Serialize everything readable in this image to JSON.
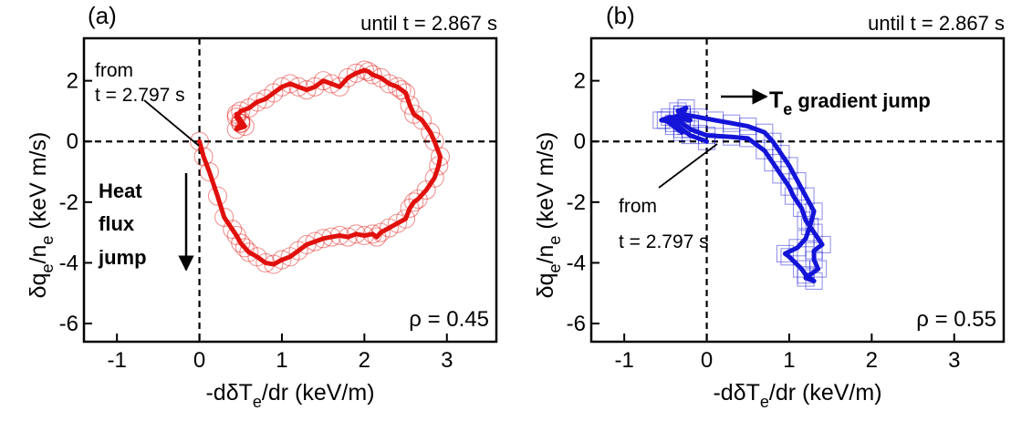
{
  "chart_data": [
    {
      "type": "line",
      "panel_label": "(a)",
      "top_right_note": "until t = 2.867 s",
      "xlabel": "-dδT",
      "xlabel_sub": "e",
      "xlabel_tail": "/dr (keV/m)",
      "ylabel_parts": [
        "δq",
        "e",
        "/n",
        "e",
        " (keV m/s)"
      ],
      "xlim": [
        -1.4,
        3.6
      ],
      "ylim": [
        -6.6,
        3.4
      ],
      "xticks": [
        "-1",
        "0",
        "1",
        "2",
        "3"
      ],
      "xtick_values": [
        -1,
        0,
        1,
        2,
        3
      ],
      "yticks": [
        "-6",
        "-4",
        "-2",
        "0",
        "2"
      ],
      "ytick_values": [
        -6,
        -4,
        -2,
        0,
        2
      ],
      "rho_label": "ρ = 0.45",
      "annotations": {
        "from_line1": "from",
        "from_line2": "t = 2.797 s",
        "jump_lines": [
          "Heat",
          "flux",
          "jump"
        ]
      },
      "series": [
        {
          "color": "#e0100c",
          "marker": "circle",
          "x": [
            0.0,
            0.05,
            0.12,
            0.22,
            0.3,
            0.4,
            0.45,
            0.5,
            0.55,
            0.6,
            0.7,
            0.8,
            0.9,
            1.0,
            1.1,
            1.2,
            1.3,
            1.4,
            1.5,
            1.6,
            1.7,
            1.8,
            1.9,
            2.0,
            2.1,
            2.15,
            2.2,
            2.3,
            2.4,
            2.5,
            2.55,
            2.6,
            2.65,
            2.75,
            2.85,
            2.9,
            2.92,
            2.85,
            2.8,
            2.7,
            2.6,
            2.55,
            2.5,
            2.45,
            2.4,
            2.3,
            2.2,
            2.1,
            2.05,
            2.0,
            1.9,
            1.8,
            1.7,
            1.6,
            1.5,
            1.4,
            1.3,
            1.2,
            1.1,
            1.0,
            0.9,
            0.8,
            0.7,
            0.6,
            0.5,
            0.45,
            0.5,
            0.45,
            0.55,
            0.5,
            0.45,
            0.5
          ],
          "y": [
            0.0,
            -0.5,
            -1.0,
            -1.8,
            -2.5,
            -2.9,
            -3.1,
            -3.35,
            -3.5,
            -3.65,
            -3.8,
            -4.0,
            -4.05,
            -3.9,
            -3.8,
            -3.6,
            -3.4,
            -3.3,
            -3.2,
            -3.15,
            -3.1,
            -3.15,
            -3.05,
            -3.1,
            -3.05,
            -3.15,
            -3.0,
            -2.85,
            -2.7,
            -2.55,
            -2.2,
            -2.0,
            -1.9,
            -1.6,
            -1.2,
            -0.8,
            -0.5,
            0.0,
            0.3,
            0.7,
            0.9,
            1.2,
            1.6,
            1.7,
            1.8,
            1.9,
            2.1,
            2.2,
            2.3,
            2.35,
            2.25,
            2.1,
            1.8,
            1.9,
            2.0,
            1.8,
            1.7,
            1.8,
            1.9,
            1.8,
            1.6,
            1.4,
            1.3,
            1.1,
            1.0,
            0.8,
            0.6,
            0.4,
            0.5,
            0.7,
            0.9,
            0.6
          ]
        }
      ]
    },
    {
      "type": "line",
      "panel_label": "(b)",
      "top_right_note": "until t = 2.867 s",
      "xlabel": "-dδT",
      "xlabel_sub": "e",
      "xlabel_tail": "/dr (keV/m)",
      "ylabel_parts": [
        "δq",
        "e",
        "/n",
        "e",
        " (keV m/s)"
      ],
      "xlim": [
        -1.4,
        3.6
      ],
      "ylim": [
        -6.6,
        3.4
      ],
      "xticks": [
        "-1",
        "0",
        "1",
        "2",
        "3"
      ],
      "xtick_values": [
        -1,
        0,
        1,
        2,
        3
      ],
      "yticks": [
        "-6",
        "-4",
        "-2",
        "0",
        "2"
      ],
      "ytick_values": [
        -6,
        -4,
        -2,
        0,
        2
      ],
      "rho_label": "ρ = 0.55",
      "annotations": {
        "from_line1": "from",
        "from_line2": "t = 2.797 s",
        "jump_main": "T",
        "jump_sub": "e",
        "jump_tail": " gradient jump"
      },
      "series": [
        {
          "color": "#1414d8",
          "marker": "square",
          "x": [
            0.0,
            -0.2,
            -0.3,
            -0.4,
            -0.3,
            -0.35,
            -0.25,
            -0.3,
            -0.2,
            -0.45,
            -0.55,
            -0.3,
            -0.25,
            -0.2,
            0.0,
            0.3,
            0.5,
            0.7,
            0.8,
            0.9,
            1.0,
            1.05,
            1.15,
            1.2,
            1.3,
            1.4,
            1.3,
            1.3,
            1.35,
            1.2,
            1.3,
            1.2,
            1.15,
            1.0,
            0.95,
            1.1,
            1.2,
            1.25,
            1.3,
            1.2,
            1.1,
            1.0,
            0.9,
            0.8,
            0.7,
            0.5,
            0.3,
            0.1,
            -0.1,
            -0.3,
            -0.5,
            -0.4,
            -0.3
          ],
          "y": [
            0.0,
            0.2,
            0.4,
            0.6,
            0.8,
            1.0,
            1.1,
            0.9,
            0.7,
            0.8,
            0.7,
            0.6,
            0.5,
            0.4,
            0.2,
            0.15,
            0.1,
            -0.3,
            -0.7,
            -1.1,
            -1.5,
            -1.8,
            -2.2,
            -2.6,
            -3.0,
            -3.4,
            -3.6,
            -3.9,
            -4.2,
            -4.5,
            -4.6,
            -4.4,
            -4.2,
            -3.8,
            -3.7,
            -3.5,
            -3.2,
            -2.8,
            -2.3,
            -1.8,
            -1.3,
            -0.8,
            -0.4,
            0.0,
            0.3,
            0.5,
            0.6,
            0.7,
            0.8,
            0.9,
            0.7,
            0.5,
            0.3
          ]
        }
      ]
    }
  ]
}
